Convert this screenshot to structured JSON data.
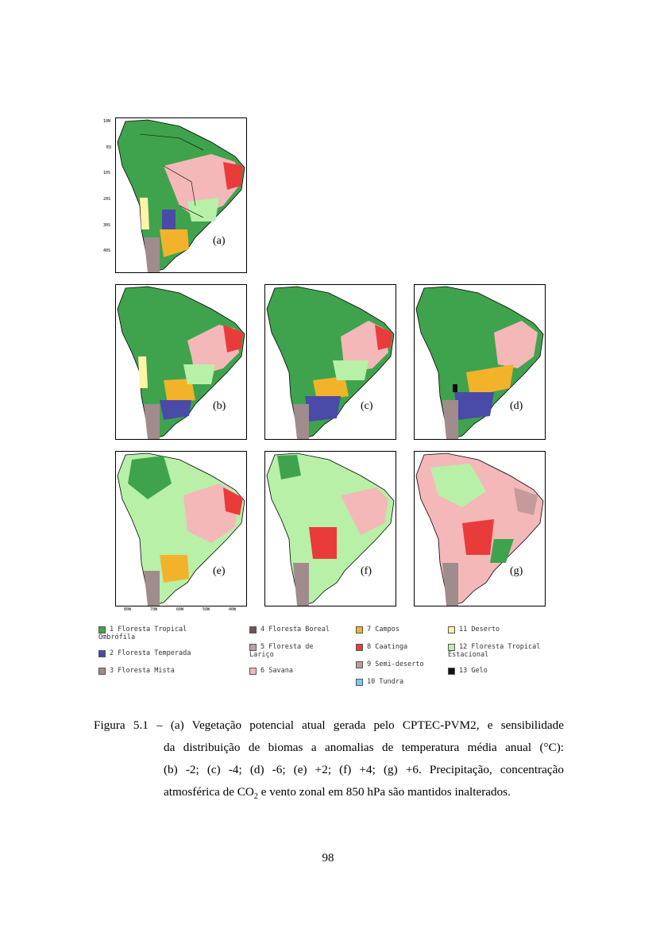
{
  "figure": {
    "panels": [
      {
        "id": "a",
        "label": "(a)"
      },
      {
        "id": "b",
        "label": "(b)"
      },
      {
        "id": "c",
        "label": "(c)"
      },
      {
        "id": "d",
        "label": "(d)"
      },
      {
        "id": "e",
        "label": "(e)"
      },
      {
        "id": "f",
        "label": "(f)"
      },
      {
        "id": "g",
        "label": "(g)"
      }
    ],
    "lat_ticks": [
      "10N",
      "EQ",
      "10S",
      "20S",
      "30S",
      "40S"
    ],
    "lon_ticks": [
      "80W",
      "70W",
      "60W",
      "50W",
      "40W"
    ],
    "legend": [
      {
        "label": "1 Floresta Tropical\nOmbrófila",
        "color": "#3fa34d"
      },
      {
        "label": "2 Floresta Temperada",
        "color": "#4a4aa8"
      },
      {
        "label": "3 Floresta Mista",
        "color": "#a08c8c"
      },
      {
        "label": "4 Floresta Boreal",
        "color": "#6f5555"
      },
      {
        "label": "5 Floresta de\nLariço",
        "color": "#b6a3a3"
      },
      {
        "label": "6 Savana",
        "color": "#f4b8b8"
      },
      {
        "label": "7 Campos",
        "color": "#f2b32b"
      },
      {
        "label": "8 Caatinga",
        "color": "#ea3b3b"
      },
      {
        "label": "9 Semi-deserto",
        "color": "#c49a9a"
      },
      {
        "label": "10 Tundra",
        "color": "#7fc7f0"
      },
      {
        "label": "11 Deserto",
        "color": "#fff3a8"
      },
      {
        "label": "12 Floresta Tropical\nEstacional",
        "color": "#b8f0a8"
      },
      {
        "label": "13 Gelo",
        "color": "#111111"
      }
    ]
  },
  "caption": {
    "line1": "Figura 5.1 – (a) Vegetação potencial atual gerada pelo CPTEC-PVM2, e sensibilidade",
    "line2": "da distribuição de biomas a anomalias de temperatura média anual (°C):",
    "line3": "(b) -2; (c) -4; (d) -6; (e) +2; (f) +4; (g) +6. Precipitação, concentração",
    "line4a": "atmosférica de CO",
    "line4sub": "2",
    "line4b": " e vento zonal em 850 hPa são mantidos inalterados."
  },
  "page_number": "98"
}
